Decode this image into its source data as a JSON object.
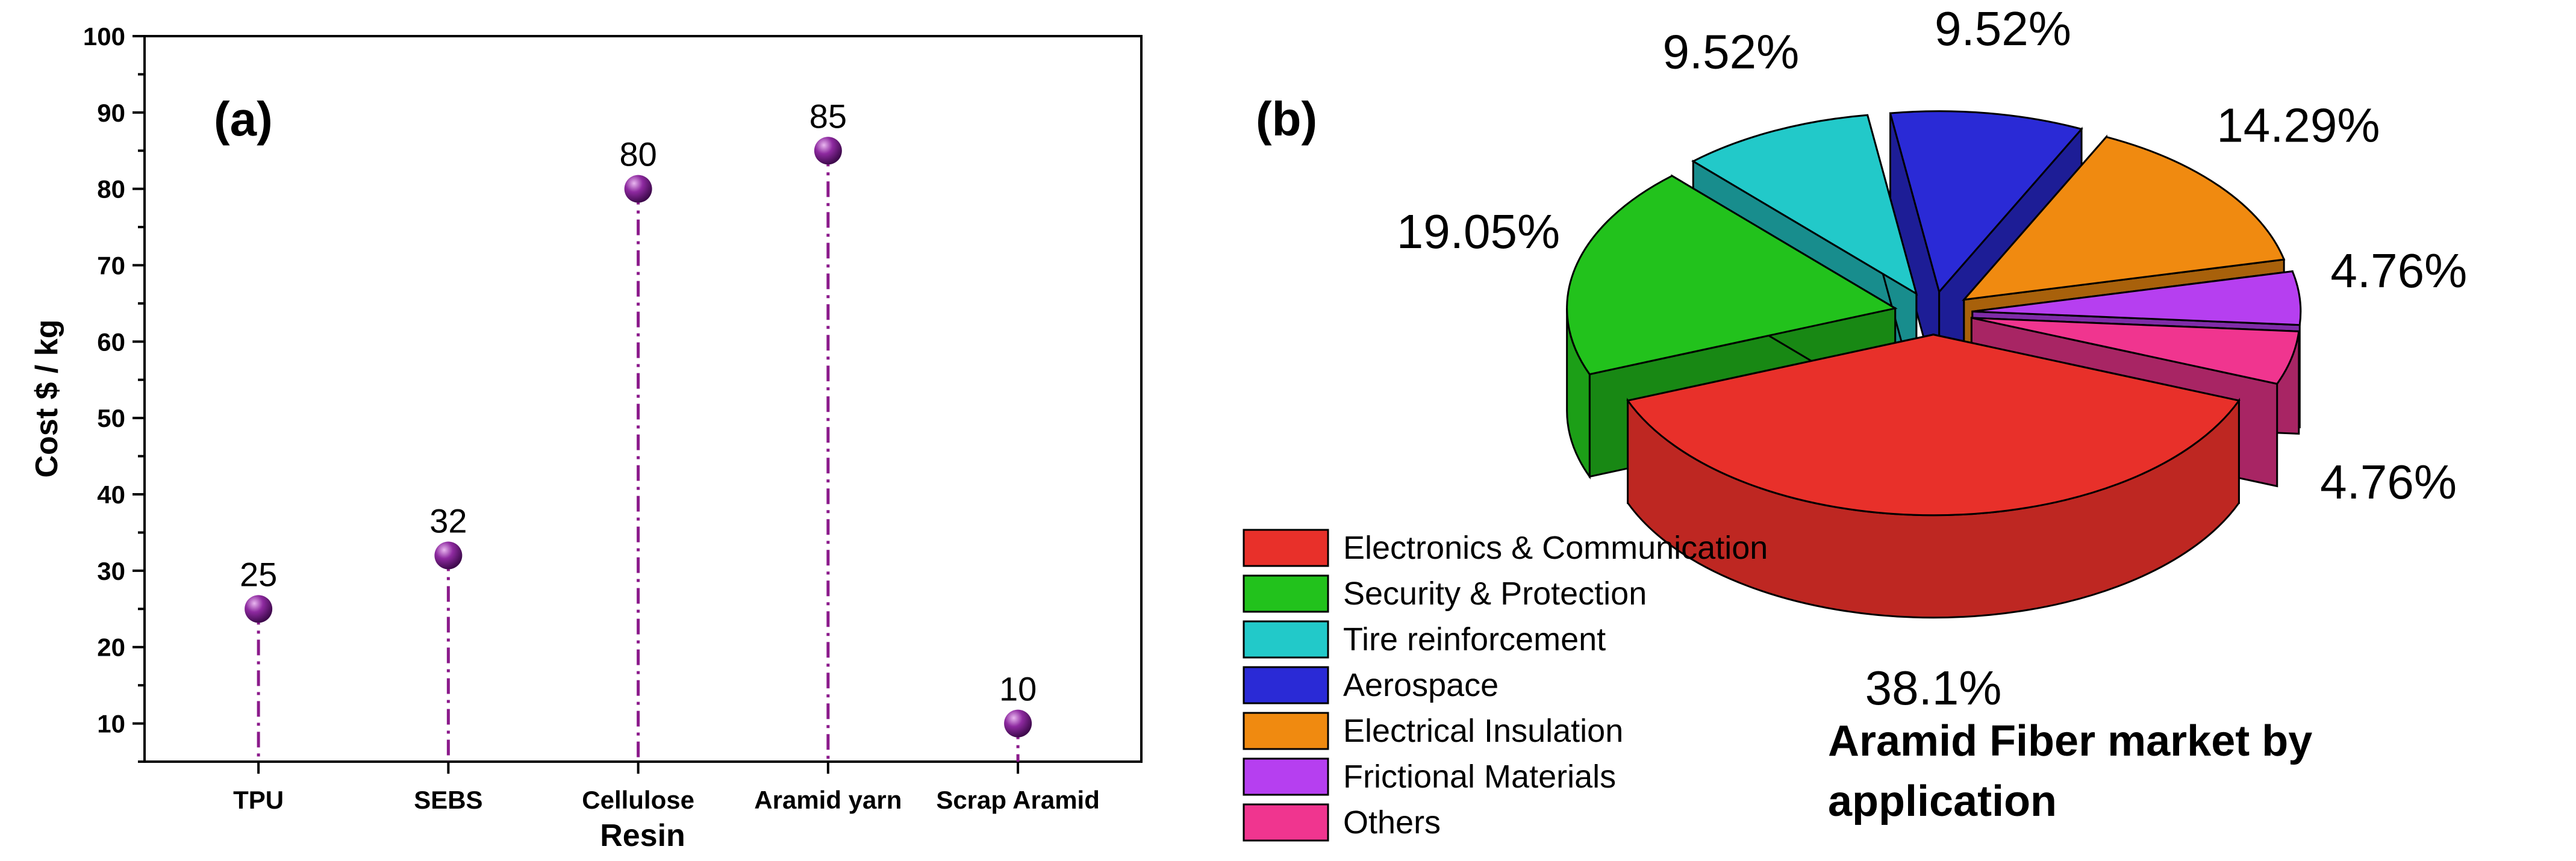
{
  "chart_data": [
    {
      "type": "scatter",
      "panel_label": "(a)",
      "categories": [
        "TPU",
        "SEBS",
        "Cellulose",
        "Aramid yarn",
        "Scrap Aramid"
      ],
      "values": [
        25,
        32,
        80,
        85,
        10
      ],
      "data_labels": [
        "25",
        "32",
        "80",
        "85",
        "10"
      ],
      "xlabel": "Resin",
      "ylabel": "Cost $ / kg",
      "ylim": [
        5,
        100
      ],
      "yticks": [
        10,
        20,
        30,
        40,
        50,
        60,
        70,
        80,
        90,
        100
      ],
      "stem_style": "dash-dot",
      "marker_color": "#7b1f8c",
      "stem_color": "#8b1a8b",
      "grid": false
    },
    {
      "type": "pie",
      "panel_label": "(b)",
      "style": "3d-exploded",
      "title_lines": [
        "Aramid Fiber market by",
        "application"
      ],
      "slices": [
        {
          "name": "Electronics & Communication",
          "value": 38.1,
          "label": "38.1%",
          "color": "#e8302a"
        },
        {
          "name": "Security & Protection",
          "value": 19.05,
          "label": "19.05%",
          "color": "#22c21c"
        },
        {
          "name": "Tire reinforcement",
          "value": 9.52,
          "label": "9.52%",
          "color": "#22c9c9"
        },
        {
          "name": "Aerospace",
          "value": 9.52,
          "label": "9.52%",
          "color": "#2a2ad6"
        },
        {
          "name": "Electrical Insulation",
          "value": 14.29,
          "label": "14.29%",
          "color": "#f08a10"
        },
        {
          "name": "Frictional Materials",
          "value": 4.76,
          "label": "4.76%",
          "color": "#b63ff0"
        },
        {
          "name": "Others",
          "value": 4.76,
          "label": "4.76%",
          "color": "#f0358f"
        }
      ],
      "legend_position": "bottom-left"
    }
  ]
}
